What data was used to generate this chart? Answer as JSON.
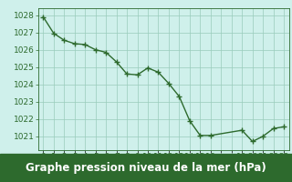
{
  "x": [
    0,
    1,
    2,
    3,
    4,
    5,
    6,
    7,
    8,
    9,
    10,
    11,
    12,
    13,
    14,
    15,
    16,
    19,
    20,
    21,
    22,
    23
  ],
  "y": [
    1027.9,
    1026.95,
    1026.55,
    1026.35,
    1026.3,
    1026.0,
    1025.85,
    1025.3,
    1024.6,
    1024.55,
    1024.95,
    1024.7,
    1024.05,
    1023.3,
    1021.9,
    1021.05,
    1021.05,
    1021.35,
    1020.7,
    1021.0,
    1021.45,
    1021.55
  ],
  "line_color": "#2d6a2d",
  "marker_color": "#2d6a2d",
  "bg_color": "#cff0eb",
  "grid_color": "#99ccbb",
  "ylabel_ticks": [
    1021,
    1022,
    1023,
    1024,
    1025,
    1026,
    1027,
    1028
  ],
  "xlim": [
    -0.5,
    23.5
  ],
  "ylim": [
    1020.2,
    1028.4
  ],
  "xlabel": "Graphe pression niveau de la mer (hPa)",
  "xlabel_color": "#ffffff",
  "xlabel_bg": "#2d6a2d",
  "xlabel_fontsize": 8.5,
  "marker_size": 4,
  "line_width": 1.0,
  "tick_fontsize": 6.5,
  "fig_width": 3.2,
  "fig_height": 2.0,
  "dpi": 100
}
